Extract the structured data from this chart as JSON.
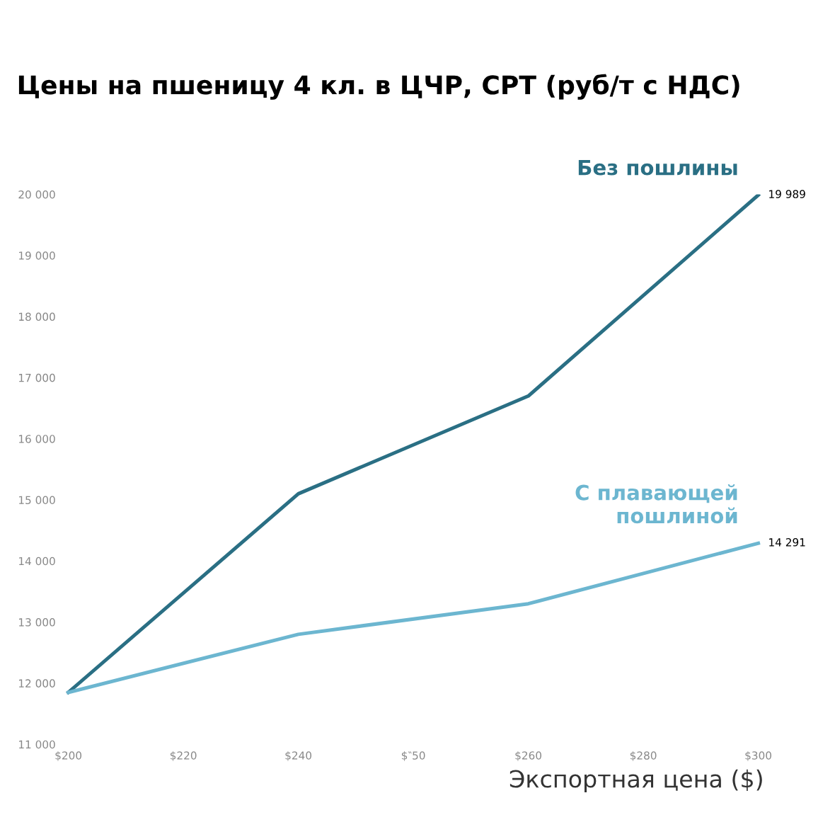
{
  "chart_data": {
    "type": "line",
    "title": "Цены на пшеницу 4 кл. в ЦЧР, СРТ (руб/т с НДС)",
    "xlabel": "Экспортная цена ($)",
    "categories": [
      "$200",
      "$220",
      "$240",
      "$‶50",
      "$260",
      "$280",
      "$300"
    ],
    "series": [
      {
        "name": "Без пошлины",
        "color": "#2a6f84",
        "values": [
          11850,
          null,
          15100,
          null,
          16700,
          null,
          19989
        ],
        "value_labels": [
          null,
          null,
          null,
          null,
          null,
          null,
          "19 989"
        ]
      },
      {
        "name": "С плавающей пошлиной",
        "color": "#6cb6d0",
        "values": [
          11850,
          null,
          12800,
          null,
          13300,
          null,
          14291
        ],
        "value_labels": [
          null,
          null,
          null,
          null,
          null,
          null,
          "14 291"
        ]
      }
    ],
    "ylim": [
      11000,
      20000
    ],
    "yticks": [
      {
        "value": 11000,
        "label": "11 000"
      },
      {
        "value": 12000,
        "label": "12 000"
      },
      {
        "value": 13000,
        "label": "13 000"
      },
      {
        "value": 14000,
        "label": "14 000"
      },
      {
        "value": 15000,
        "label": "15 000"
      },
      {
        "value": 16000,
        "label": "16 000"
      },
      {
        "value": 17000,
        "label": "17 000"
      },
      {
        "value": 18000,
        "label": "18 000"
      },
      {
        "value": 19000,
        "label": "19 000"
      },
      {
        "value": 20000,
        "label": "20 000"
      }
    ],
    "grid": false,
    "legend": false,
    "line_style": "solid"
  }
}
